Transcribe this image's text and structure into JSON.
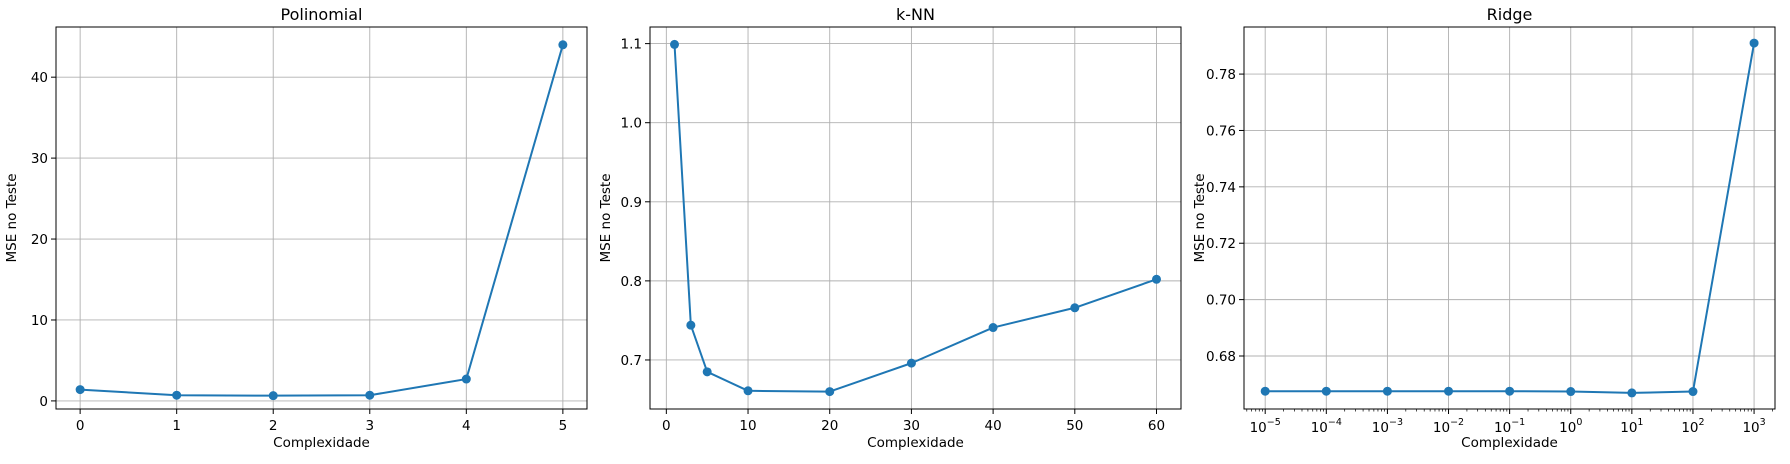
{
  "colors": {
    "series": "#1f77b4",
    "grid": "#b0b0b0",
    "axes": "#000000"
  },
  "chart_data": [
    {
      "type": "line",
      "title": "Polinomial",
      "xlabel": "Complexidade",
      "ylabel": "MSE no Teste",
      "xscale": "linear",
      "xlim": [
        -0.25,
        5.25
      ],
      "ylim": [
        -1.0,
        46.2
      ],
      "xticks": [
        0,
        1,
        2,
        3,
        4,
        5
      ],
      "xticklabels": [
        "0",
        "1",
        "2",
        "3",
        "4",
        "5"
      ],
      "yticks": [
        0,
        10,
        20,
        30,
        40
      ],
      "yticklabels": [
        "0",
        "10",
        "20",
        "30",
        "40"
      ],
      "grid": true,
      "marker": "circle",
      "x": [
        0,
        1,
        2,
        3,
        4,
        5
      ],
      "y": [
        1.4,
        0.7,
        0.65,
        0.7,
        2.7,
        44.0
      ]
    },
    {
      "type": "line",
      "title": "k-NN",
      "xlabel": "Complexidade",
      "ylabel": "MSE no Teste",
      "xscale": "linear",
      "xlim": [
        -2.0,
        63.0
      ],
      "ylim": [
        0.638,
        1.121
      ],
      "xticks": [
        0,
        10,
        20,
        30,
        40,
        50,
        60
      ],
      "xticklabels": [
        "0",
        "10",
        "20",
        "30",
        "40",
        "50",
        "60"
      ],
      "yticks": [
        0.7,
        0.8,
        0.9,
        1.0,
        1.1
      ],
      "yticklabels": [
        "0.7",
        "0.8",
        "0.9",
        "1.0",
        "1.1"
      ],
      "grid": true,
      "marker": "circle",
      "x": [
        1,
        3,
        5,
        10,
        20,
        30,
        40,
        50,
        60
      ],
      "y": [
        1.099,
        0.744,
        0.685,
        0.661,
        0.66,
        0.696,
        0.741,
        0.766,
        0.802
      ]
    },
    {
      "type": "line",
      "title": "Ridge",
      "xlabel": "Complexidade",
      "ylabel": "MSE no Teste",
      "xscale": "log",
      "xlim": [
        4.5e-06,
        2200
      ],
      "ylim": [
        0.6612,
        0.7967
      ],
      "xticks": [
        1e-05,
        0.0001,
        0.001,
        0.01,
        0.1,
        1,
        10,
        100,
        1000
      ],
      "xticklabels": [
        {
          "base": "10",
          "exp": "−5"
        },
        {
          "base": "10",
          "exp": "−4"
        },
        {
          "base": "10",
          "exp": "−3"
        },
        {
          "base": "10",
          "exp": "−2"
        },
        {
          "base": "10",
          "exp": "−1"
        },
        {
          "base": "10",
          "exp": "0"
        },
        {
          "base": "10",
          "exp": "1"
        },
        {
          "base": "10",
          "exp": "2"
        },
        {
          "base": "10",
          "exp": "3"
        }
      ],
      "yticks": [
        0.68,
        0.7,
        0.72,
        0.74,
        0.76,
        0.78
      ],
      "yticklabels": [
        "0.68",
        "0.70",
        "0.72",
        "0.74",
        "0.76",
        "0.78"
      ],
      "grid": true,
      "marker": "circle",
      "x": [
        1e-05,
        0.0001,
        0.001,
        0.01,
        0.1,
        1,
        10,
        100,
        1000
      ],
      "y": [
        0.6675,
        0.6675,
        0.6675,
        0.6675,
        0.6675,
        0.6674,
        0.6669,
        0.6674,
        0.791
      ]
    }
  ]
}
